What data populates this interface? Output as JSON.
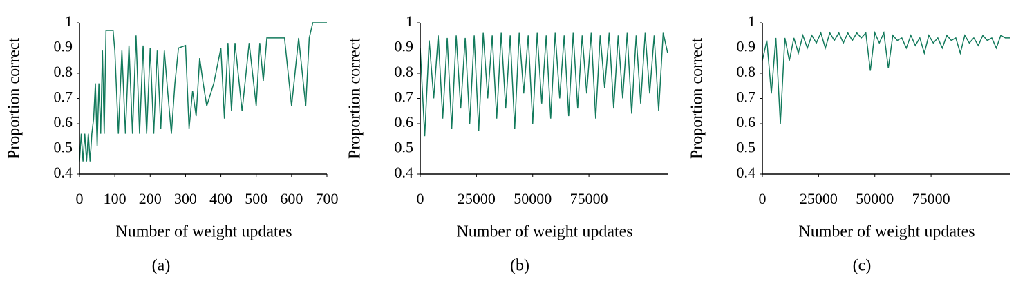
{
  "chart_data": [
    {
      "type": "line",
      "caption": "(a)",
      "xlabel": "Number of weight updates",
      "ylabel": "Proportion correct",
      "color": "#137a5c",
      "xlim": [
        0,
        700
      ],
      "xticks": [
        0,
        100,
        200,
        300,
        400,
        500,
        600,
        700
      ],
      "ylim": [
        0.4,
        1
      ],
      "yticks": [
        0.4,
        0.5,
        0.6,
        0.7,
        0.8,
        0.9,
        1
      ],
      "x": [
        0,
        5,
        10,
        15,
        20,
        25,
        30,
        35,
        40,
        45,
        50,
        55,
        60,
        65,
        70,
        75,
        95,
        100,
        110,
        120,
        130,
        140,
        150,
        160,
        170,
        180,
        190,
        200,
        210,
        220,
        230,
        240,
        250,
        260,
        270,
        280,
        300,
        310,
        320,
        330,
        340,
        350,
        360,
        380,
        400,
        410,
        420,
        430,
        440,
        460,
        480,
        500,
        510,
        520,
        530,
        540,
        560,
        580,
        600,
        620,
        640,
        650,
        660,
        670,
        700
      ],
      "values": [
        0.45,
        0.56,
        0.45,
        0.56,
        0.45,
        0.56,
        0.45,
        0.56,
        0.62,
        0.76,
        0.51,
        0.76,
        0.56,
        0.89,
        0.56,
        0.97,
        0.97,
        0.89,
        0.56,
        0.89,
        0.56,
        0.91,
        0.56,
        0.95,
        0.56,
        0.91,
        0.56,
        0.9,
        0.56,
        0.89,
        0.58,
        0.89,
        0.72,
        0.56,
        0.76,
        0.9,
        0.91,
        0.58,
        0.73,
        0.63,
        0.86,
        0.76,
        0.67,
        0.76,
        0.9,
        0.62,
        0.92,
        0.65,
        0.92,
        0.65,
        0.92,
        0.67,
        0.92,
        0.77,
        0.94,
        0.94,
        0.94,
        0.94,
        0.67,
        0.94,
        0.67,
        0.94,
        1,
        1,
        1
      ]
    },
    {
      "type": "line",
      "caption": "(b)",
      "xlabel": "Number of weight updates",
      "ylabel": "Proportion correct",
      "color": "#137a5c",
      "xlim": [
        0,
        110000
      ],
      "xticks": [
        0,
        25000,
        50000,
        75000
      ],
      "ylim": [
        0.4,
        1
      ],
      "yticks": [
        0.4,
        0.5,
        0.6,
        0.7,
        0.8,
        0.9,
        1
      ],
      "x": [
        0,
        2000,
        4000,
        6000,
        8000,
        10000,
        12000,
        14000,
        16000,
        18000,
        20000,
        22000,
        24000,
        26000,
        28000,
        30000,
        32000,
        34000,
        36000,
        38000,
        40000,
        42000,
        44000,
        46000,
        48000,
        50000,
        52000,
        54000,
        56000,
        58000,
        60000,
        62000,
        64000,
        66000,
        68000,
        70000,
        72000,
        74000,
        76000,
        78000,
        80000,
        82000,
        84000,
        86000,
        88000,
        90000,
        92000,
        94000,
        96000,
        98000,
        100000,
        102000,
        104000,
        106000,
        108000,
        110000
      ],
      "values": [
        0.9,
        0.55,
        0.93,
        0.7,
        0.95,
        0.62,
        0.94,
        0.58,
        0.95,
        0.66,
        0.94,
        0.6,
        0.95,
        0.57,
        0.96,
        0.7,
        0.95,
        0.62,
        0.96,
        0.66,
        0.95,
        0.58,
        0.96,
        0.72,
        0.95,
        0.6,
        0.96,
        0.68,
        0.95,
        0.62,
        0.96,
        0.7,
        0.95,
        0.63,
        0.96,
        0.66,
        0.95,
        0.72,
        0.96,
        0.62,
        0.95,
        0.74,
        0.96,
        0.66,
        0.95,
        0.7,
        0.96,
        0.64,
        0.95,
        0.68,
        0.96,
        0.72,
        0.95,
        0.65,
        0.96,
        0.88
      ]
    },
    {
      "type": "line",
      "caption": "(c)",
      "xlabel": "Number of weight updates",
      "ylabel": "Proportion correct",
      "color": "#137a5c",
      "xlim": [
        0,
        110000
      ],
      "xticks": [
        0,
        25000,
        50000,
        75000
      ],
      "ylim": [
        0.4,
        1
      ],
      "yticks": [
        0.4,
        0.5,
        0.6,
        0.7,
        0.8,
        0.9,
        1
      ],
      "x": [
        0,
        2000,
        4000,
        6000,
        8000,
        10000,
        12000,
        14000,
        16000,
        18000,
        20000,
        22000,
        24000,
        26000,
        28000,
        30000,
        32000,
        34000,
        36000,
        38000,
        40000,
        42000,
        44000,
        46000,
        48000,
        50000,
        52000,
        54000,
        56000,
        58000,
        60000,
        62000,
        64000,
        66000,
        68000,
        70000,
        72000,
        74000,
        76000,
        78000,
        80000,
        82000,
        84000,
        86000,
        88000,
        90000,
        92000,
        94000,
        96000,
        98000,
        100000,
        102000,
        104000,
        106000,
        108000,
        110000
      ],
      "values": [
        0.85,
        0.93,
        0.72,
        0.94,
        0.6,
        0.94,
        0.85,
        0.94,
        0.88,
        0.95,
        0.9,
        0.95,
        0.92,
        0.96,
        0.9,
        0.96,
        0.93,
        0.96,
        0.92,
        0.96,
        0.93,
        0.96,
        0.94,
        0.96,
        0.81,
        0.96,
        0.92,
        0.96,
        0.82,
        0.95,
        0.93,
        0.94,
        0.9,
        0.95,
        0.91,
        0.94,
        0.88,
        0.95,
        0.92,
        0.94,
        0.9,
        0.95,
        0.93,
        0.94,
        0.88,
        0.95,
        0.92,
        0.94,
        0.91,
        0.95,
        0.93,
        0.94,
        0.9,
        0.95,
        0.94,
        0.94
      ]
    }
  ]
}
